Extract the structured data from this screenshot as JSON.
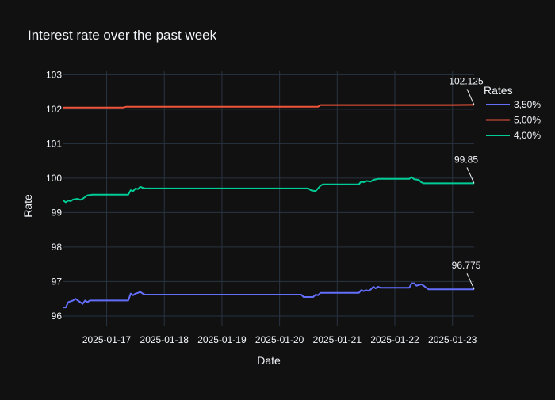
{
  "chart_data": {
    "type": "line",
    "title": "Interest rate over the past week",
    "xlabel": "Date",
    "ylabel": "Rate",
    "legend_title": "Rates",
    "legend_position": "top-right",
    "grid": true,
    "x_range": [
      "2025-01-16 06:00",
      "2025-01-23 09:00"
    ],
    "ylim": [
      95.7,
      103.1
    ],
    "x_ticks": [
      "2025-01-17",
      "2025-01-18",
      "2025-01-19",
      "2025-01-20",
      "2025-01-21",
      "2025-01-22",
      "2025-01-23"
    ],
    "y_ticks": [
      96,
      97,
      98,
      99,
      100,
      101,
      102,
      103
    ],
    "background": "#111111",
    "series": [
      {
        "name": "3,50%",
        "color": "#636efa",
        "points": [
          [
            "2025-01-16 06:00",
            96.25
          ],
          [
            "2025-01-16 07:00",
            96.25
          ],
          [
            "2025-01-16 08:00",
            96.4
          ],
          [
            "2025-01-16 10:00",
            96.45
          ],
          [
            "2025-01-16 11:00",
            96.5
          ],
          [
            "2025-01-16 13:00",
            96.4
          ],
          [
            "2025-01-16 14:00",
            96.35
          ],
          [
            "2025-01-16 15:00",
            96.45
          ],
          [
            "2025-01-16 16:00",
            96.4
          ],
          [
            "2025-01-16 17:00",
            96.45
          ],
          [
            "2025-01-17 00:00",
            96.45
          ],
          [
            "2025-01-17 09:00",
            96.45
          ],
          [
            "2025-01-17 10:00",
            96.65
          ],
          [
            "2025-01-17 11:00",
            96.6
          ],
          [
            "2025-01-17 12:00",
            96.65
          ],
          [
            "2025-01-17 13:00",
            96.67
          ],
          [
            "2025-01-17 14:00",
            96.7
          ],
          [
            "2025-01-17 15:00",
            96.65
          ],
          [
            "2025-01-17 16:00",
            96.62
          ],
          [
            "2025-01-18 00:00",
            96.62
          ],
          [
            "2025-01-19 00:00",
            96.62
          ],
          [
            "2025-01-20 00:00",
            96.62
          ],
          [
            "2025-01-20 09:00",
            96.62
          ],
          [
            "2025-01-20 10:00",
            96.55
          ],
          [
            "2025-01-20 14:00",
            96.55
          ],
          [
            "2025-01-20 15:00",
            96.62
          ],
          [
            "2025-01-20 16:00",
            96.6
          ],
          [
            "2025-01-20 17:00",
            96.67
          ],
          [
            "2025-01-21 00:00",
            96.67
          ],
          [
            "2025-01-21 09:00",
            96.67
          ],
          [
            "2025-01-21 10:00",
            96.75
          ],
          [
            "2025-01-21 11:00",
            96.72
          ],
          [
            "2025-01-21 12:00",
            96.75
          ],
          [
            "2025-01-21 13:00",
            96.73
          ],
          [
            "2025-01-21 14:00",
            96.77
          ],
          [
            "2025-01-21 15:00",
            96.85
          ],
          [
            "2025-01-21 16:00",
            96.8
          ],
          [
            "2025-01-21 17:00",
            96.85
          ],
          [
            "2025-01-21 18:00",
            96.82
          ],
          [
            "2025-01-22 00:00",
            96.82
          ],
          [
            "2025-01-22 06:00",
            96.82
          ],
          [
            "2025-01-22 07:00",
            96.95
          ],
          [
            "2025-01-22 08:00",
            96.95
          ],
          [
            "2025-01-22 09:00",
            96.88
          ],
          [
            "2025-01-22 11:00",
            96.92
          ],
          [
            "2025-01-22 12:00",
            96.88
          ],
          [
            "2025-01-22 14:00",
            96.775
          ],
          [
            "2025-01-23 00:00",
            96.775
          ],
          [
            "2025-01-23 09:00",
            96.775
          ]
        ],
        "last_label": "96.775"
      },
      {
        "name": "5,00%",
        "color": "#ef553b",
        "points": [
          [
            "2025-01-16 06:00",
            102.05
          ],
          [
            "2025-01-17 00:00",
            102.05
          ],
          [
            "2025-01-17 07:00",
            102.05
          ],
          [
            "2025-01-17 08:00",
            102.07
          ],
          [
            "2025-01-18 00:00",
            102.07
          ],
          [
            "2025-01-19 00:00",
            102.07
          ],
          [
            "2025-01-20 00:00",
            102.07
          ],
          [
            "2025-01-20 16:00",
            102.07
          ],
          [
            "2025-01-20 17:00",
            102.12
          ],
          [
            "2025-01-21 00:00",
            102.12
          ],
          [
            "2025-01-22 00:00",
            102.12
          ],
          [
            "2025-01-23 00:00",
            102.12
          ],
          [
            "2025-01-23 09:00",
            102.125
          ]
        ],
        "last_label": "102.125"
      },
      {
        "name": "4,00%",
        "color": "#00cc96",
        "points": [
          [
            "2025-01-16 06:00",
            99.35
          ],
          [
            "2025-01-16 07:00",
            99.3
          ],
          [
            "2025-01-16 08:00",
            99.35
          ],
          [
            "2025-01-16 09:00",
            99.33
          ],
          [
            "2025-01-16 10:00",
            99.38
          ],
          [
            "2025-01-16 12:00",
            99.4
          ],
          [
            "2025-01-16 13:00",
            99.37
          ],
          [
            "2025-01-16 14:00",
            99.4
          ],
          [
            "2025-01-16 16:00",
            99.5
          ],
          [
            "2025-01-16 18:00",
            99.52
          ],
          [
            "2025-01-17 00:00",
            99.52
          ],
          [
            "2025-01-17 09:00",
            99.52
          ],
          [
            "2025-01-17 10:00",
            99.65
          ],
          [
            "2025-01-17 11:00",
            99.62
          ],
          [
            "2025-01-17 12:00",
            99.7
          ],
          [
            "2025-01-17 13:00",
            99.68
          ],
          [
            "2025-01-17 14:00",
            99.75
          ],
          [
            "2025-01-17 15:00",
            99.72
          ],
          [
            "2025-01-17 16:00",
            99.7
          ],
          [
            "2025-01-18 00:00",
            99.7
          ],
          [
            "2025-01-19 00:00",
            99.7
          ],
          [
            "2025-01-20 00:00",
            99.7
          ],
          [
            "2025-01-20 12:00",
            99.7
          ],
          [
            "2025-01-20 13:00",
            99.65
          ],
          [
            "2025-01-20 15:00",
            99.62
          ],
          [
            "2025-01-20 16:00",
            99.7
          ],
          [
            "2025-01-20 17:00",
            99.78
          ],
          [
            "2025-01-20 18:00",
            99.82
          ],
          [
            "2025-01-21 00:00",
            99.82
          ],
          [
            "2025-01-21 09:00",
            99.82
          ],
          [
            "2025-01-21 10:00",
            99.9
          ],
          [
            "2025-01-21 11:00",
            99.88
          ],
          [
            "2025-01-21 12:00",
            99.92
          ],
          [
            "2025-01-21 14:00",
            99.9
          ],
          [
            "2025-01-21 15:00",
            99.95
          ],
          [
            "2025-01-21 17:00",
            99.98
          ],
          [
            "2025-01-22 00:00",
            99.98
          ],
          [
            "2025-01-22 06:00",
            99.98
          ],
          [
            "2025-01-22 07:00",
            100.03
          ],
          [
            "2025-01-22 08:00",
            99.97
          ],
          [
            "2025-01-22 10:00",
            99.95
          ],
          [
            "2025-01-22 11:00",
            99.88
          ],
          [
            "2025-01-22 12:00",
            99.85
          ],
          [
            "2025-01-23 00:00",
            99.85
          ],
          [
            "2025-01-23 09:00",
            99.85
          ]
        ],
        "last_label": "99.85"
      }
    ]
  }
}
